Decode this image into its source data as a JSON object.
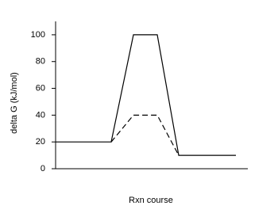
{
  "chart_data": {
    "type": "line",
    "xlabel": "Rxn course",
    "ylabel": "delta G (kJ/mol)",
    "x": [
      0,
      70,
      98,
      128,
      155,
      227
    ],
    "xlim": [
      0,
      242
    ],
    "series": [
      {
        "color": "#000000",
        "dash": false,
        "values": [
          20,
          20,
          100,
          100,
          10,
          10
        ]
      },
      {
        "color": "#000000",
        "dash": true,
        "values": [
          null,
          20,
          40,
          40,
          10,
          null
        ]
      }
    ],
    "ylim": [
      0,
      110
    ],
    "yticks": [
      0,
      20,
      40,
      60,
      80,
      100
    ]
  }
}
